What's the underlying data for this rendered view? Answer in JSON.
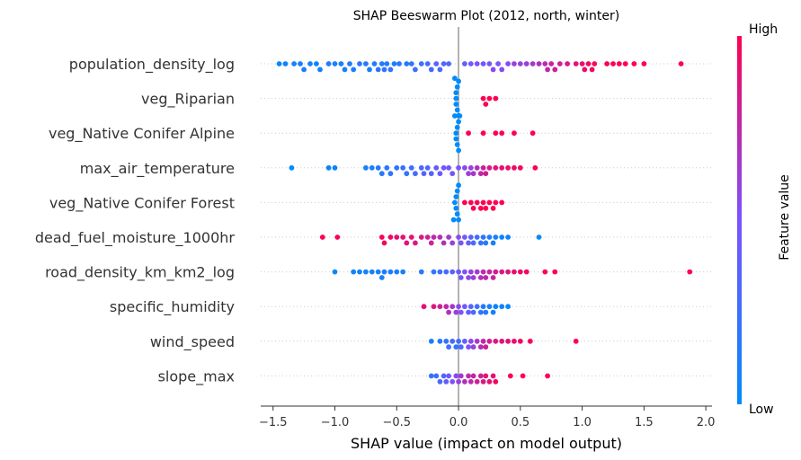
{
  "chart_data": {
    "type": "scatter",
    "title": "SHAP Beeswarm Plot (2012, north, winter)",
    "xlabel": "SHAP value (impact on model output)",
    "ylabel": "",
    "xlim": [
      -1.6,
      2.05
    ],
    "xticks": [
      -1.5,
      -1.0,
      -0.5,
      0.0,
      0.5,
      1.0,
      1.5,
      2.0
    ],
    "xtick_labels": [
      "−1.5",
      "−1.0",
      "−0.5",
      "0.0",
      "0.5",
      "1.0",
      "1.5",
      "2.0"
    ],
    "colorbar": {
      "title": "Feature value",
      "high_label": "High",
      "low_label": "Low",
      "low_color": "#008bfb",
      "mid_color": "#7c52ff",
      "high_color": "#ff0051"
    },
    "grid": false,
    "series": [
      {
        "name": "population_density_log",
        "points": [
          [
            -1.45,
            0.02
          ],
          [
            -1.4,
            0.05
          ],
          [
            -1.33,
            0.08
          ],
          [
            -1.28,
            0.1
          ],
          [
            -1.25,
            0.1
          ],
          [
            -1.2,
            0.1
          ],
          [
            -1.15,
            0.05
          ],
          [
            -1.12,
            0.08
          ],
          [
            -1.05,
            0.12
          ],
          [
            -1.0,
            0.1
          ],
          [
            -0.95,
            0.1
          ],
          [
            -0.92,
            0.12
          ],
          [
            -0.88,
            0.15
          ],
          [
            -0.85,
            0.1
          ],
          [
            -0.8,
            0.15
          ],
          [
            -0.75,
            0.15
          ],
          [
            -0.72,
            0.1
          ],
          [
            -0.68,
            0.15
          ],
          [
            -0.65,
            0.18
          ],
          [
            -0.62,
            0.15
          ],
          [
            -0.6,
            0.2
          ],
          [
            -0.58,
            0.15
          ],
          [
            -0.55,
            0.18
          ],
          [
            -0.52,
            0.12
          ],
          [
            -0.48,
            0.15
          ],
          [
            -0.42,
            0.1
          ],
          [
            -0.38,
            0.2
          ],
          [
            -0.35,
            0.25
          ],
          [
            -0.3,
            0.22
          ],
          [
            -0.25,
            0.3
          ],
          [
            -0.22,
            0.28
          ],
          [
            -0.18,
            0.35
          ],
          [
            -0.15,
            0.3
          ],
          [
            -0.12,
            0.35
          ],
          [
            -0.08,
            0.3
          ],
          [
            0.05,
            0.4
          ],
          [
            0.1,
            0.45
          ],
          [
            0.15,
            0.5
          ],
          [
            0.2,
            0.45
          ],
          [
            0.25,
            0.5
          ],
          [
            0.28,
            0.55
          ],
          [
            0.32,
            0.5
          ],
          [
            0.35,
            0.55
          ],
          [
            0.4,
            0.55
          ],
          [
            0.45,
            0.6
          ],
          [
            0.5,
            0.6
          ],
          [
            0.55,
            0.62
          ],
          [
            0.6,
            0.65
          ],
          [
            0.65,
            0.7
          ],
          [
            0.7,
            0.72
          ],
          [
            0.72,
            0.75
          ],
          [
            0.75,
            0.78
          ],
          [
            0.78,
            0.8
          ],
          [
            0.82,
            0.8
          ],
          [
            0.88,
            0.85
          ],
          [
            0.95,
            0.88
          ],
          [
            1.0,
            0.9
          ],
          [
            1.02,
            0.92
          ],
          [
            1.05,
            0.95
          ],
          [
            1.08,
            0.95
          ],
          [
            1.1,
            0.95
          ],
          [
            1.2,
            0.98
          ],
          [
            1.25,
            1.0
          ],
          [
            1.3,
            1.0
          ],
          [
            1.35,
            1.0
          ],
          [
            1.42,
            1.0
          ],
          [
            1.5,
            1.0
          ],
          [
            1.8,
            1.0
          ]
        ]
      },
      {
        "name": "veg_Riparian",
        "points": [
          [
            -0.02,
            0.0
          ],
          [
            -0.02,
            0.0
          ],
          [
            -0.02,
            0.0
          ],
          [
            -0.01,
            0.0
          ],
          [
            -0.01,
            0.0
          ],
          [
            0.0,
            0.0
          ],
          [
            0.0,
            0.0
          ],
          [
            -0.03,
            0.0
          ],
          [
            0.2,
            1.0
          ],
          [
            0.22,
            1.0
          ],
          [
            0.25,
            1.0
          ],
          [
            0.3,
            1.0
          ]
        ]
      },
      {
        "name": "veg_Native Conifer Alpine",
        "points": [
          [
            -0.02,
            0.0
          ],
          [
            -0.02,
            0.0
          ],
          [
            -0.01,
            0.0
          ],
          [
            -0.01,
            0.0
          ],
          [
            0.0,
            0.0
          ],
          [
            0.0,
            0.0
          ],
          [
            -0.03,
            0.0
          ],
          [
            0.01,
            0.0
          ],
          [
            0.08,
            1.0
          ],
          [
            0.2,
            1.0
          ],
          [
            0.3,
            1.0
          ],
          [
            0.35,
            1.0
          ],
          [
            0.45,
            1.0
          ],
          [
            0.6,
            1.0
          ]
        ]
      },
      {
        "name": "max_air_temperature",
        "points": [
          [
            -1.35,
            0.0
          ],
          [
            -1.05,
            0.05
          ],
          [
            -1.0,
            0.05
          ],
          [
            -0.75,
            0.1
          ],
          [
            -0.7,
            0.1
          ],
          [
            -0.65,
            0.15
          ],
          [
            -0.62,
            0.15
          ],
          [
            -0.58,
            0.18
          ],
          [
            -0.55,
            0.18
          ],
          [
            -0.5,
            0.2
          ],
          [
            -0.45,
            0.22
          ],
          [
            -0.42,
            0.2
          ],
          [
            -0.38,
            0.25
          ],
          [
            -0.35,
            0.28
          ],
          [
            -0.3,
            0.3
          ],
          [
            -0.28,
            0.35
          ],
          [
            -0.25,
            0.32
          ],
          [
            -0.22,
            0.35
          ],
          [
            -0.18,
            0.4
          ],
          [
            -0.15,
            0.42
          ],
          [
            -0.12,
            0.45
          ],
          [
            -0.08,
            0.45
          ],
          [
            -0.05,
            0.48
          ],
          [
            0.0,
            0.5
          ],
          [
            0.05,
            0.55
          ],
          [
            0.08,
            0.6
          ],
          [
            0.1,
            0.6
          ],
          [
            0.12,
            0.65
          ],
          [
            0.15,
            0.7
          ],
          [
            0.18,
            0.75
          ],
          [
            0.2,
            0.8
          ],
          [
            0.22,
            0.82
          ],
          [
            0.25,
            0.85
          ],
          [
            0.3,
            0.88
          ],
          [
            0.35,
            0.9
          ],
          [
            0.4,
            0.92
          ],
          [
            0.45,
            0.95
          ],
          [
            0.5,
            0.95
          ],
          [
            0.62,
            1.0
          ]
        ]
      },
      {
        "name": "veg_Native Conifer Forest",
        "points": [
          [
            -0.03,
            0.0
          ],
          [
            -0.02,
            0.0
          ],
          [
            -0.02,
            0.0
          ],
          [
            -0.01,
            0.0
          ],
          [
            -0.01,
            0.0
          ],
          [
            0.0,
            0.0
          ],
          [
            0.0,
            0.0
          ],
          [
            -0.04,
            0.0
          ],
          [
            0.05,
            1.0
          ],
          [
            0.1,
            1.0
          ],
          [
            0.12,
            1.0
          ],
          [
            0.15,
            1.0
          ],
          [
            0.18,
            1.0
          ],
          [
            0.2,
            1.0
          ],
          [
            0.22,
            1.0
          ],
          [
            0.25,
            1.0
          ],
          [
            0.28,
            1.0
          ],
          [
            0.3,
            1.0
          ],
          [
            0.35,
            1.0
          ]
        ]
      },
      {
        "name": "dead_fuel_moisture_1000hr",
        "points": [
          [
            -1.1,
            1.0
          ],
          [
            -0.98,
            1.0
          ],
          [
            -0.62,
            0.98
          ],
          [
            -0.6,
            0.95
          ],
          [
            -0.55,
            0.95
          ],
          [
            -0.5,
            0.92
          ],
          [
            -0.45,
            0.9
          ],
          [
            -0.42,
            0.9
          ],
          [
            -0.38,
            0.88
          ],
          [
            -0.35,
            0.85
          ],
          [
            -0.3,
            0.85
          ],
          [
            -0.25,
            0.8
          ],
          [
            -0.22,
            0.78
          ],
          [
            -0.2,
            0.75
          ],
          [
            -0.15,
            0.72
          ],
          [
            -0.12,
            0.7
          ],
          [
            -0.08,
            0.65
          ],
          [
            -0.05,
            0.6
          ],
          [
            0.0,
            0.55
          ],
          [
            0.02,
            0.5
          ],
          [
            0.05,
            0.45
          ],
          [
            0.08,
            0.4
          ],
          [
            0.1,
            0.35
          ],
          [
            0.12,
            0.3
          ],
          [
            0.15,
            0.25
          ],
          [
            0.18,
            0.2
          ],
          [
            0.2,
            0.18
          ],
          [
            0.22,
            0.15
          ],
          [
            0.25,
            0.12
          ],
          [
            0.28,
            0.1
          ],
          [
            0.3,
            0.08
          ],
          [
            0.35,
            0.05
          ],
          [
            0.4,
            0.05
          ],
          [
            0.65,
            0.0
          ]
        ]
      },
      {
        "name": "road_density_km_km2_log",
        "points": [
          [
            -1.0,
            0.0
          ],
          [
            -0.85,
            0.05
          ],
          [
            -0.8,
            0.05
          ],
          [
            -0.75,
            0.08
          ],
          [
            -0.7,
            0.1
          ],
          [
            -0.65,
            0.1
          ],
          [
            -0.62,
            0.1
          ],
          [
            -0.6,
            0.12
          ],
          [
            -0.55,
            0.12
          ],
          [
            -0.5,
            0.1
          ],
          [
            -0.45,
            0.1
          ],
          [
            -0.3,
            0.15
          ],
          [
            -0.2,
            0.2
          ],
          [
            -0.15,
            0.25
          ],
          [
            -0.1,
            0.3
          ],
          [
            -0.05,
            0.35
          ],
          [
            0.0,
            0.4
          ],
          [
            0.02,
            0.45
          ],
          [
            0.05,
            0.5
          ],
          [
            0.08,
            0.55
          ],
          [
            0.1,
            0.6
          ],
          [
            0.12,
            0.62
          ],
          [
            0.15,
            0.65
          ],
          [
            0.18,
            0.7
          ],
          [
            0.2,
            0.72
          ],
          [
            0.22,
            0.75
          ],
          [
            0.25,
            0.78
          ],
          [
            0.28,
            0.8
          ],
          [
            0.3,
            0.82
          ],
          [
            0.35,
            0.85
          ],
          [
            0.4,
            0.88
          ],
          [
            0.45,
            0.9
          ],
          [
            0.5,
            0.92
          ],
          [
            0.55,
            0.95
          ],
          [
            0.7,
            0.98
          ],
          [
            0.78,
            1.0
          ],
          [
            1.87,
            1.0
          ]
        ]
      },
      {
        "name": "specific_humidity",
        "points": [
          [
            -0.28,
            0.9
          ],
          [
            -0.2,
            0.85
          ],
          [
            -0.15,
            0.8
          ],
          [
            -0.1,
            0.75
          ],
          [
            -0.08,
            0.7
          ],
          [
            -0.05,
            0.65
          ],
          [
            -0.02,
            0.6
          ],
          [
            0.0,
            0.55
          ],
          [
            0.02,
            0.5
          ],
          [
            0.05,
            0.45
          ],
          [
            0.08,
            0.4
          ],
          [
            0.1,
            0.35
          ],
          [
            0.12,
            0.3
          ],
          [
            0.15,
            0.25
          ],
          [
            0.18,
            0.2
          ],
          [
            0.2,
            0.15
          ],
          [
            0.22,
            0.12
          ],
          [
            0.25,
            0.1
          ],
          [
            0.28,
            0.08
          ],
          [
            0.3,
            0.05
          ],
          [
            0.35,
            0.05
          ],
          [
            0.4,
            0.02
          ]
        ]
      },
      {
        "name": "wind_speed",
        "points": [
          [
            -0.22,
            0.1
          ],
          [
            -0.15,
            0.15
          ],
          [
            -0.1,
            0.2
          ],
          [
            -0.08,
            0.25
          ],
          [
            -0.05,
            0.3
          ],
          [
            -0.02,
            0.2
          ],
          [
            0.0,
            0.25
          ],
          [
            0.02,
            0.3
          ],
          [
            0.05,
            0.4
          ],
          [
            0.08,
            0.5
          ],
          [
            0.1,
            0.55
          ],
          [
            0.12,
            0.6
          ],
          [
            0.15,
            0.65
          ],
          [
            0.18,
            0.7
          ],
          [
            0.2,
            0.75
          ],
          [
            0.22,
            0.8
          ],
          [
            0.25,
            0.82
          ],
          [
            0.3,
            0.85
          ],
          [
            0.35,
            0.88
          ],
          [
            0.4,
            0.9
          ],
          [
            0.45,
            0.92
          ],
          [
            0.5,
            0.95
          ],
          [
            0.58,
            0.98
          ],
          [
            0.95,
            1.0
          ]
        ]
      },
      {
        "name": "slope_max",
        "points": [
          [
            -0.22,
            0.2
          ],
          [
            -0.18,
            0.25
          ],
          [
            -0.15,
            0.3
          ],
          [
            -0.12,
            0.35
          ],
          [
            -0.1,
            0.4
          ],
          [
            -0.08,
            0.45
          ],
          [
            -0.05,
            0.5
          ],
          [
            -0.02,
            0.55
          ],
          [
            0.0,
            0.6
          ],
          [
            0.02,
            0.65
          ],
          [
            0.05,
            0.7
          ],
          [
            0.08,
            0.72
          ],
          [
            0.1,
            0.75
          ],
          [
            0.12,
            0.78
          ],
          [
            0.15,
            0.8
          ],
          [
            0.18,
            0.82
          ],
          [
            0.2,
            0.85
          ],
          [
            0.22,
            0.88
          ],
          [
            0.25,
            0.9
          ],
          [
            0.28,
            0.92
          ],
          [
            0.3,
            0.95
          ],
          [
            0.42,
            0.98
          ],
          [
            0.52,
            1.0
          ],
          [
            0.72,
            1.0
          ]
        ]
      }
    ]
  }
}
